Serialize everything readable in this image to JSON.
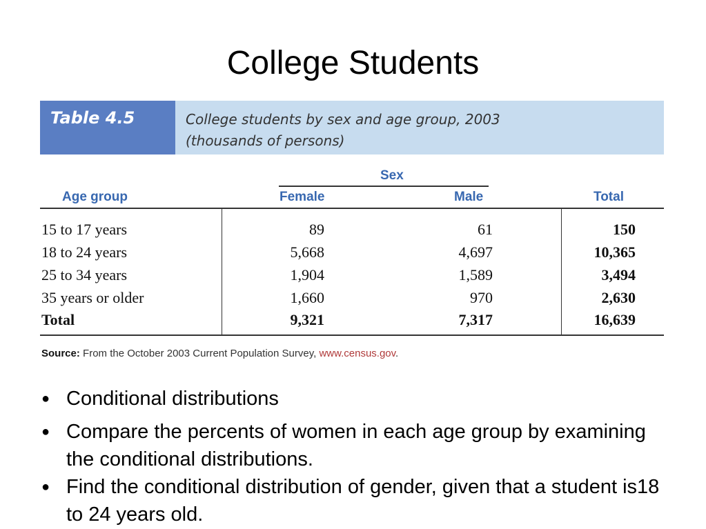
{
  "slide": {
    "title": "College Students"
  },
  "table": {
    "number": "Table 4.5",
    "caption_line1": "College students by sex and age group, 2003",
    "caption_line2": "(thousands of persons)",
    "group_header": "Sex",
    "columns": [
      "Age group",
      "Female",
      "Male",
      "Total"
    ],
    "rows": [
      [
        "15 to 17 years",
        "89",
        "61",
        "150"
      ],
      [
        "18 to 24 years",
        "5,668",
        "4,697",
        "10,365"
      ],
      [
        "25 to 34 years",
        "1,904",
        "1,589",
        "3,494"
      ],
      [
        "35 years or older",
        "1,660",
        "970",
        "2,630"
      ],
      [
        "Total",
        "9,321",
        "7,317",
        "16,639"
      ]
    ],
    "source_label": "Source:",
    "source_text": "From the October 2003 Current Population Survey,",
    "source_link": "www.census.gov",
    "source_end": "."
  },
  "bullets": [
    "Conditional distributions",
    "Compare the percents of women in each age group by examining the conditional distributions.",
    "Find the conditional distribution of gender, given that a student is18 to 24 years old."
  ],
  "colors": {
    "header_band": "#c7dcef",
    "table_label_bg": "#5a7ec3",
    "header_text": "#3868b0",
    "link": "#b03a3a"
  }
}
